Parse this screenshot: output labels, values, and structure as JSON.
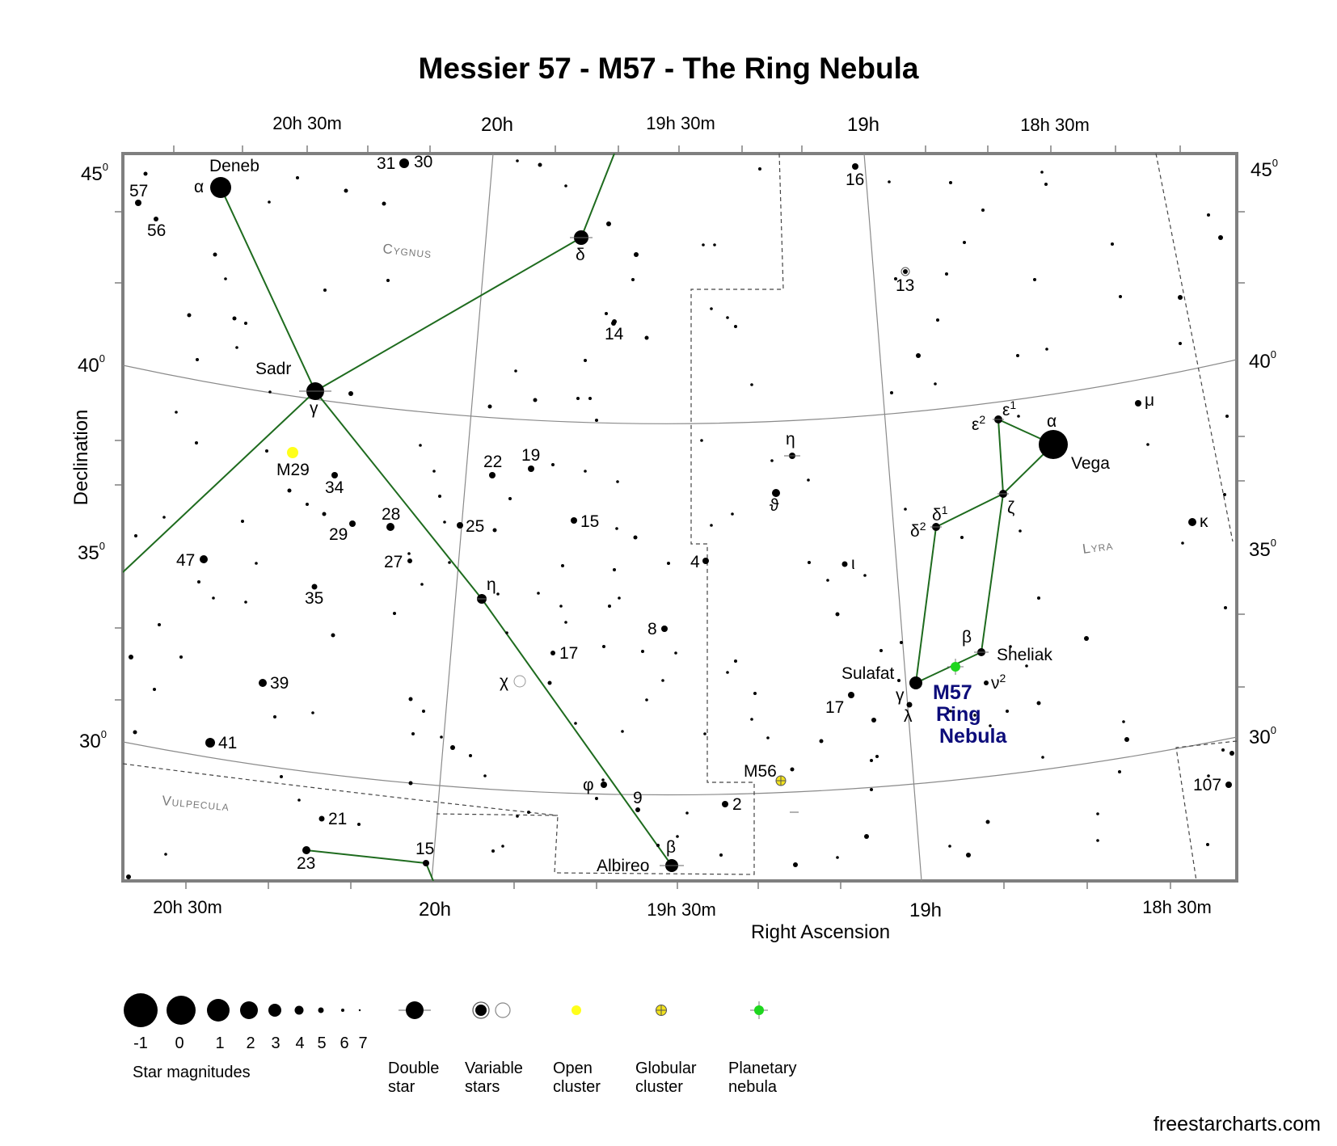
{
  "title": "Messier 57 - M57 - The Ring Nebula",
  "axes": {
    "x_label": "Right Ascension",
    "y_label": "Declination",
    "top_ticks": [
      "20h 30m",
      "20h",
      "19h 30m",
      "19h",
      "18h 30m"
    ],
    "bottom_ticks": [
      "20h 30m",
      "20h",
      "19h 30m",
      "19h",
      "18h 30m"
    ],
    "dec_ticks": [
      "45",
      "40",
      "35",
      "30"
    ],
    "degree_sup": "0"
  },
  "constellations": {
    "cygnus": "Cygnus",
    "lyra": "Lyra",
    "vulpecula": "Vulpecula"
  },
  "star_labels": {
    "deneb": "Deneb",
    "deneb_alpha": "α",
    "sadr": "Sadr",
    "sadr_gamma": "γ",
    "cyg_delta": "δ",
    "cyg_eta": "η",
    "cyg_chi": "χ",
    "cyg_phi": "φ",
    "albireo": "Albireo",
    "albireo_beta": "β",
    "vega": "Vega",
    "vega_alpha": "α",
    "eps1": "ε",
    "eps2": "ε",
    "sup1": "1",
    "sup2": "2",
    "zeta": "ζ",
    "delta1": "δ",
    "delta2": "δ",
    "sheliak": "Sheliak",
    "sheliak_beta": "β",
    "sulafat": "Sulafat",
    "sulafat_gamma": "γ",
    "lyr_nu": "ν",
    "lyr_lambda": "λ",
    "lyr_kappa": "κ",
    "lyr_mu": "μ",
    "lyr_eta": "η",
    "lyr_theta": "ϑ",
    "lyr_iota": "ι",
    "n57": "57",
    "n56": "56",
    "n31": "31",
    "n30": "30",
    "n16": "16",
    "n13": "13",
    "n14": "14",
    "n22": "22",
    "n19": "19",
    "n34": "34",
    "n28": "28",
    "n29": "29",
    "n25": "25",
    "n15": "15",
    "n47": "47",
    "n27": "27",
    "n4": "4",
    "n35": "35",
    "n8": "8",
    "n17": "17",
    "n39": "39",
    "n17b": "17",
    "n41": "41",
    "n9": "9",
    "n2": "2",
    "n21": "21",
    "n23": "23",
    "n15b": "15",
    "n107": "107"
  },
  "objects": {
    "m29": "M29",
    "m56": "M56",
    "m57_line1": "M57",
    "m57_line2": "Ring",
    "m57_line3": "Nebula"
  },
  "colors": {
    "constellation_line": "#1e6b1e",
    "open_cluster": "#ffff1a",
    "globular_cluster": "#f2e21b",
    "planetary_nebula": "#1ed61e",
    "dso_label": "#0c0c7a",
    "frame": "#7f7f7f",
    "grid": "#8a8a8a"
  },
  "legend": {
    "magnitudes": [
      "-1",
      "0",
      "1",
      "2",
      "3",
      "4",
      "5",
      "6",
      "7"
    ],
    "magnitudes_title": "Star magnitudes",
    "double_star": [
      "Double",
      "star"
    ],
    "variable_stars": [
      "Variable",
      "stars"
    ],
    "open_cluster": [
      "Open",
      "cluster"
    ],
    "globular_cluster": [
      "Globular",
      "cluster"
    ],
    "planetary_nebula": [
      "Planetary",
      "nebula"
    ]
  },
  "credit": "freestarcharts.com"
}
